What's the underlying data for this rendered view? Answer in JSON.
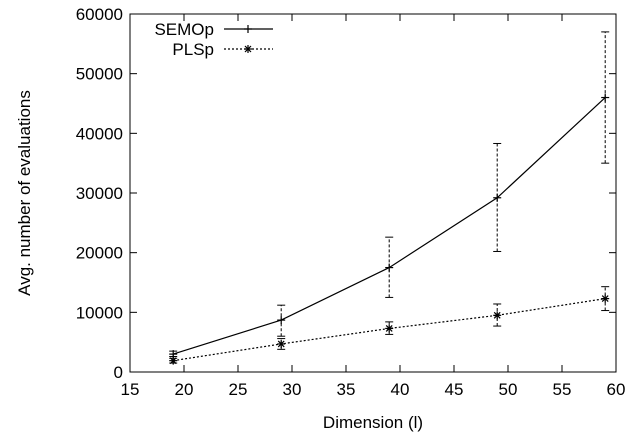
{
  "chart_data": {
    "type": "line",
    "title": "",
    "xlabel": "Dimension (l)",
    "ylabel": "Avg. number of evaluations",
    "xlim": [
      15,
      60
    ],
    "ylim": [
      0,
      60000
    ],
    "xticks": [
      15,
      20,
      25,
      30,
      35,
      40,
      45,
      50,
      55,
      60
    ],
    "yticks": [
      0,
      10000,
      20000,
      30000,
      40000,
      50000,
      60000
    ],
    "grid": false,
    "legend_position": "top-left",
    "series": [
      {
        "name": "SEMOp",
        "line_style": "solid",
        "marker": "+",
        "color": "#000000",
        "points": [
          {
            "x": 19,
            "y": 3000,
            "err_low": 2600,
            "err_high": 3500
          },
          {
            "x": 29,
            "y": 8700,
            "err_low": 6000,
            "err_high": 11200
          },
          {
            "x": 39,
            "y": 17500,
            "err_low": 12500,
            "err_high": 22600
          },
          {
            "x": 49,
            "y": 29200,
            "err_low": 20200,
            "err_high": 38300
          },
          {
            "x": 59,
            "y": 46000,
            "err_low": 35000,
            "err_high": 57000
          }
        ]
      },
      {
        "name": "PLSp",
        "line_style": "dotted",
        "marker": "*",
        "color": "#000000",
        "points": [
          {
            "x": 19,
            "y": 1900,
            "err_low": 1500,
            "err_high": 2300
          },
          {
            "x": 29,
            "y": 4700,
            "err_low": 3800,
            "err_high": 5600
          },
          {
            "x": 39,
            "y": 7300,
            "err_low": 6300,
            "err_high": 8400
          },
          {
            "x": 49,
            "y": 9500,
            "err_low": 7700,
            "err_high": 11400
          },
          {
            "x": 59,
            "y": 12300,
            "err_low": 10300,
            "err_high": 14300
          }
        ]
      }
    ]
  }
}
